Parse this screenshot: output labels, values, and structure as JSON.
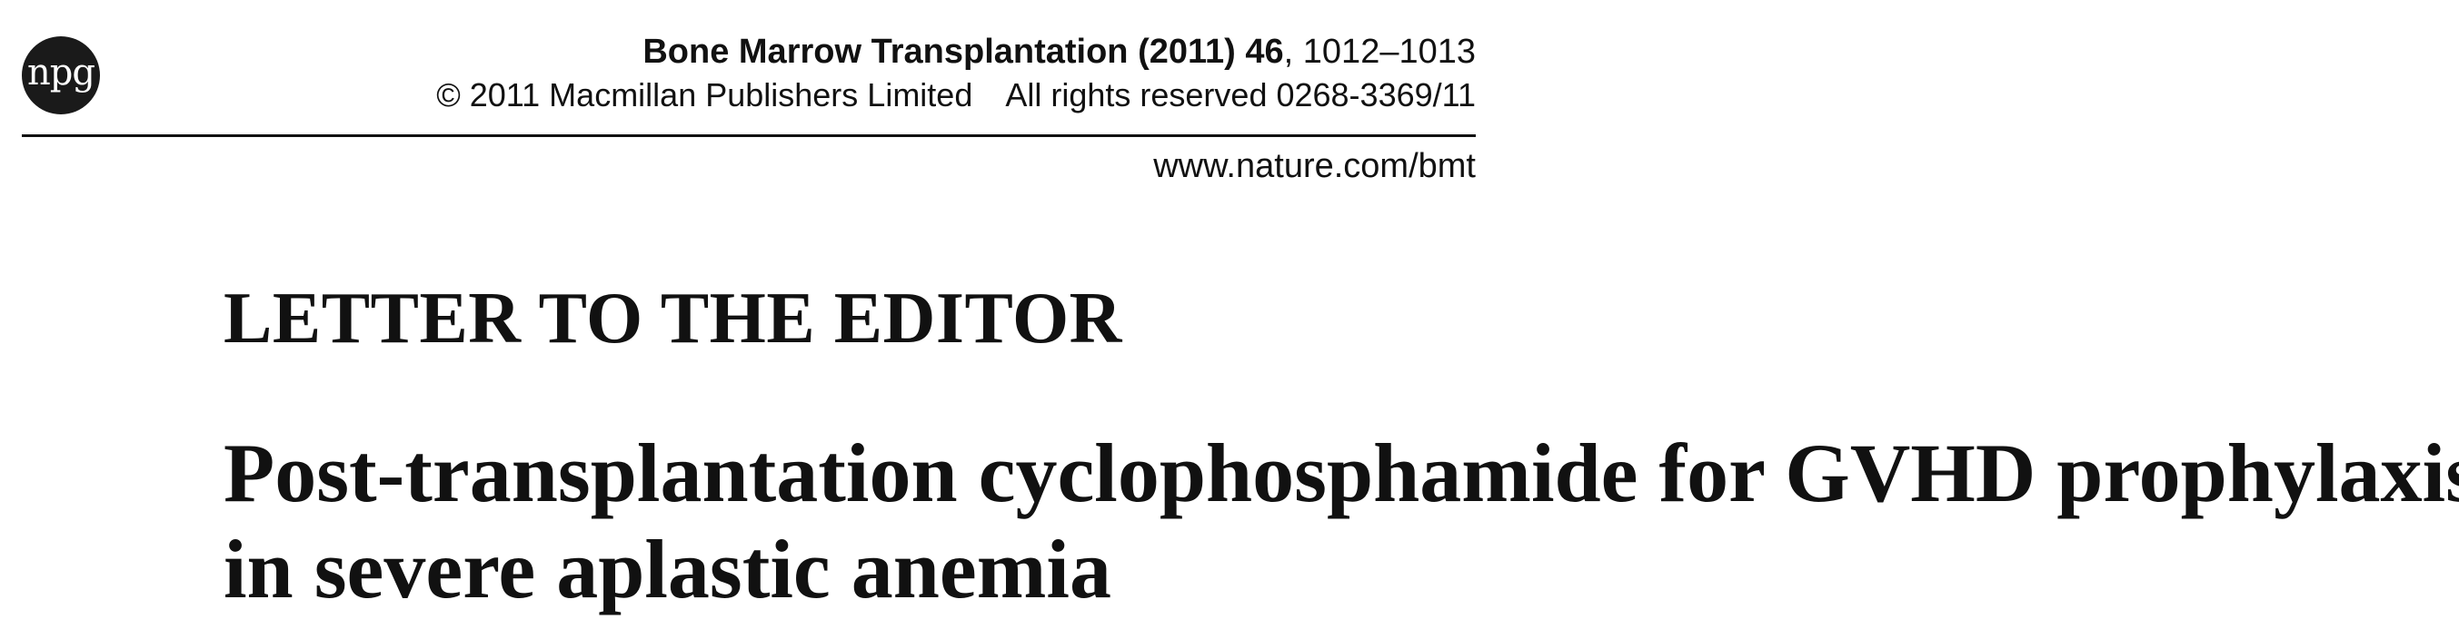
{
  "publisher_logo": {
    "text": "npg"
  },
  "header": {
    "journal_name": "Bone Marrow Transplantation",
    "year": "(2011)",
    "volume": "46",
    "pages": ", 1012–1013",
    "copyright": "© 2011 Macmillan Publishers Limited",
    "rights": "All rights reserved 0268-3369/11",
    "url": "www.nature.com/bmt"
  },
  "article": {
    "section": "LETTER TO THE EDITOR",
    "title_line_1": "Post-transplantation cyclophosphamide for GVHD prophylaxis",
    "title_line_2": "in severe aplastic anemia"
  }
}
